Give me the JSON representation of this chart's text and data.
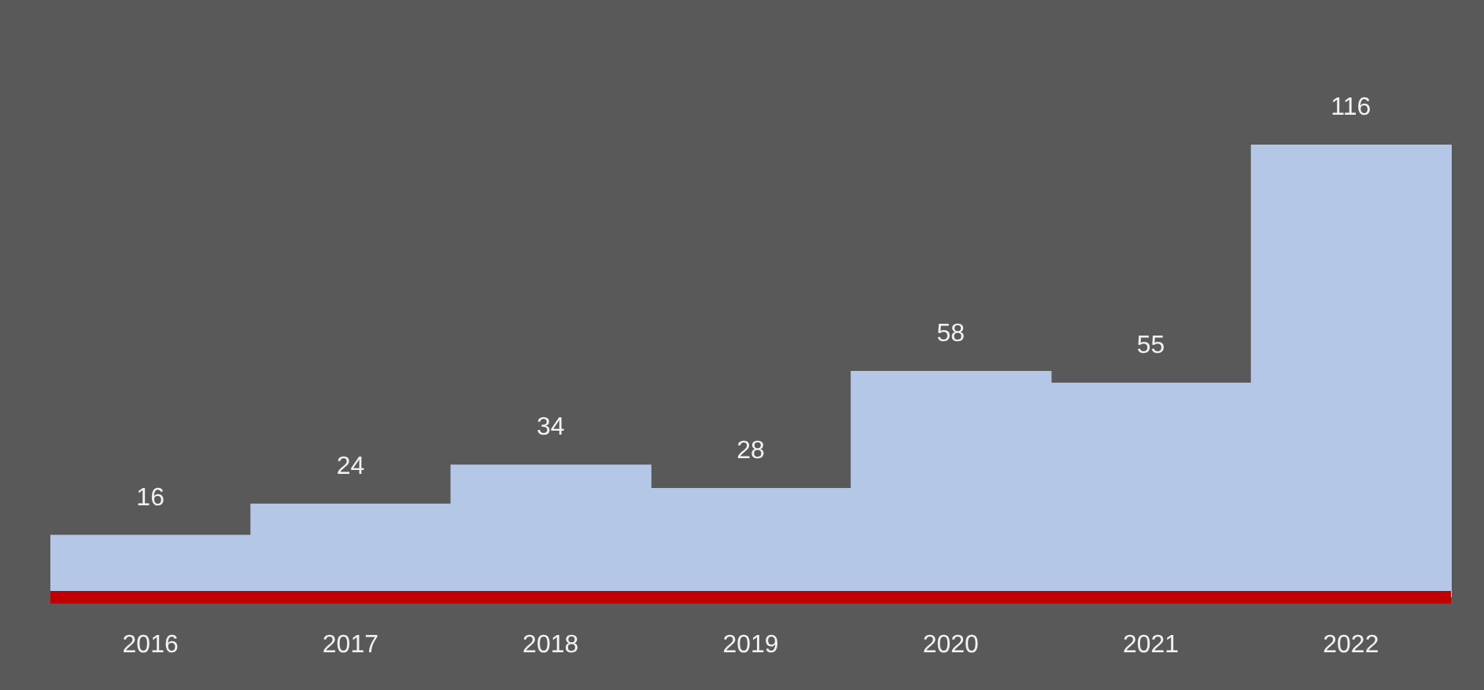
{
  "chart_data": {
    "type": "bar",
    "categories": [
      "2016",
      "2017",
      "2018",
      "2019",
      "2020",
      "2021",
      "2022"
    ],
    "values": [
      16,
      24,
      34,
      28,
      58,
      55,
      116
    ],
    "color": "#b4c7e7",
    "data_labels": true
  }
}
